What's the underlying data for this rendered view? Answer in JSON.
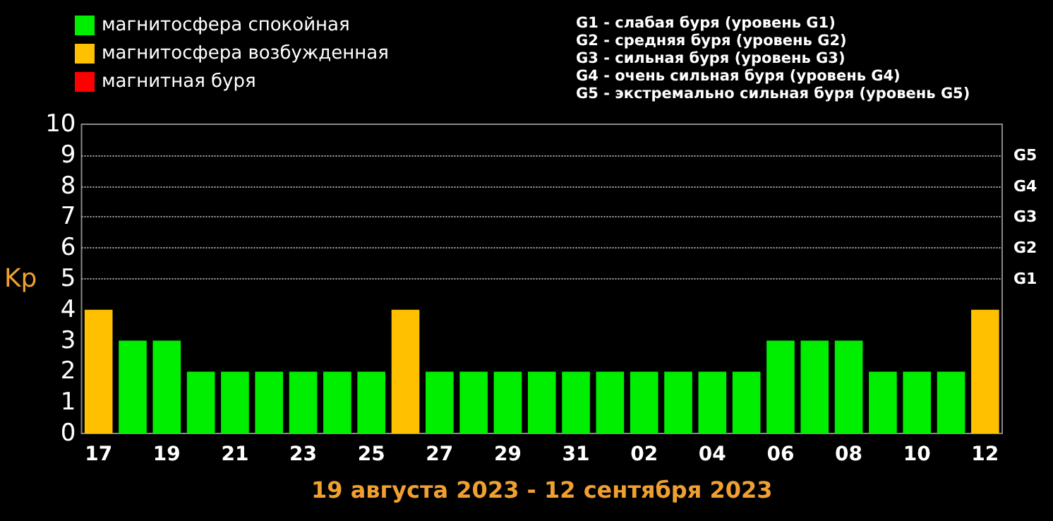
{
  "chart_data": {
    "type": "bar",
    "xlabel": "19 августа 2023 - 12 сентября 2023",
    "ylabel": "Kp",
    "categories": [
      "17",
      null,
      "19",
      null,
      "21",
      null,
      "23",
      null,
      "25",
      null,
      "27",
      null,
      "29",
      null,
      "31",
      null,
      "02",
      null,
      "04",
      null,
      "06",
      null,
      "08",
      null,
      "10",
      null,
      "12"
    ],
    "series": [
      {
        "name": "магнитосфера спокойная",
        "color": "#00ee00",
        "values": [
          null,
          3,
          3,
          2,
          2,
          2,
          2,
          2,
          2,
          null,
          2,
          2,
          2,
          2,
          2,
          2,
          2,
          2,
          2,
          2,
          3,
          3,
          3,
          2,
          2,
          2,
          null
        ]
      },
      {
        "name": "магнитосфера возбужденная",
        "color": "#ffc000",
        "values": [
          4,
          null,
          null,
          null,
          null,
          null,
          null,
          null,
          null,
          4,
          null,
          null,
          null,
          null,
          null,
          null,
          null,
          null,
          null,
          null,
          null,
          null,
          null,
          null,
          null,
          null,
          4
        ]
      },
      {
        "name": "магнитная буря",
        "color": "#ff0000",
        "values": [
          null,
          null,
          null,
          null,
          null,
          null,
          null,
          null,
          null,
          null,
          null,
          null,
          null,
          null,
          null,
          null,
          null,
          null,
          null,
          null,
          null,
          null,
          null,
          null,
          null,
          null,
          null
        ]
      }
    ],
    "ylim": [
      0,
      10
    ],
    "yticks": [
      0,
      1,
      2,
      3,
      4,
      5,
      6,
      7,
      8,
      9,
      10
    ],
    "ref_lines": [
      {
        "axis": "y",
        "value": 5,
        "label": "G1",
        "color": "#aaaaaa",
        "line_style": "dotted"
      },
      {
        "axis": "y",
        "value": 6,
        "label": "G2",
        "color": "#aaaaaa",
        "line_style": "dotted"
      },
      {
        "axis": "y",
        "value": 7,
        "label": "G3",
        "color": "#aaaaaa",
        "line_style": "dotted"
      },
      {
        "axis": "y",
        "value": 8,
        "label": "G4",
        "color": "#aaaaaa",
        "line_style": "dotted"
      },
      {
        "axis": "y",
        "value": 9,
        "label": "G5",
        "color": "#aaaaaa",
        "line_style": "dotted"
      }
    ],
    "legend": "top left",
    "annotations": [
      "G1 - слабая буря (уровень G1)",
      "G2 - средняя буря (уровень G2)",
      "G3 - сильная буря (уровень G3)",
      "G4 - очень сильная буря (уровень G4)",
      "G5 - экстремально сильная буря (уровень G5)"
    ]
  }
}
